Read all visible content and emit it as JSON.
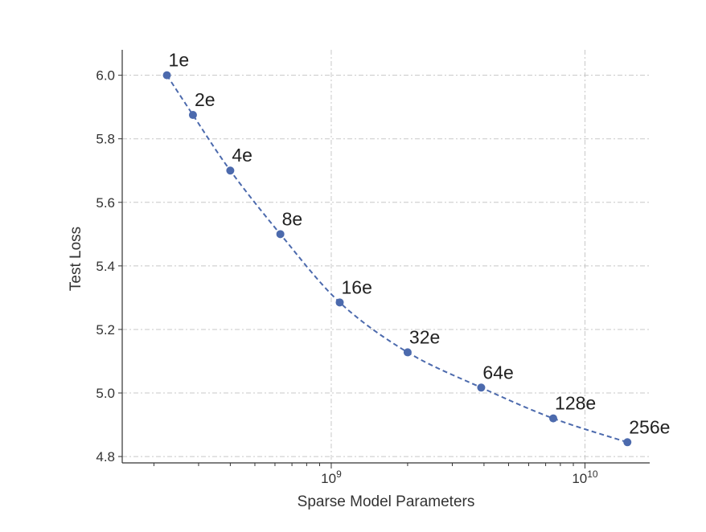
{
  "chart_data": {
    "type": "line",
    "title": "",
    "xlabel": "Sparse Model Parameters",
    "ylabel": "Test Loss",
    "x_scale": "log",
    "xlim": [
      150000000,
      18000000000
    ],
    "ylim": [
      4.78,
      6.08
    ],
    "grid": true,
    "line_style": "dashed",
    "color": "#4c6aad",
    "y_ticks": [
      "4.8",
      "5.0",
      "5.2",
      "5.4",
      "5.6",
      "5.8",
      "6.0"
    ],
    "x_ticks": [
      {
        "base": "10",
        "exp": "9",
        "value": 1000000000
      },
      {
        "base": "10",
        "exp": "10",
        "value": 10000000000
      }
    ],
    "series": [
      {
        "points": [
          {
            "label": "1e",
            "x": 225000000,
            "y": 6.0
          },
          {
            "label": "2e",
            "x": 285000000,
            "y": 5.875
          },
          {
            "label": "4e",
            "x": 400000000,
            "y": 5.7
          },
          {
            "label": "8e",
            "x": 630000000,
            "y": 5.5
          },
          {
            "label": "16e",
            "x": 1080000000,
            "y": 5.285
          },
          {
            "label": "32e",
            "x": 2000000000,
            "y": 5.128
          },
          {
            "label": "64e",
            "x": 3900000000,
            "y": 5.017
          },
          {
            "label": "128e",
            "x": 7500000000,
            "y": 4.92
          },
          {
            "label": "256e",
            "x": 14700000000,
            "y": 4.845
          }
        ]
      }
    ]
  }
}
